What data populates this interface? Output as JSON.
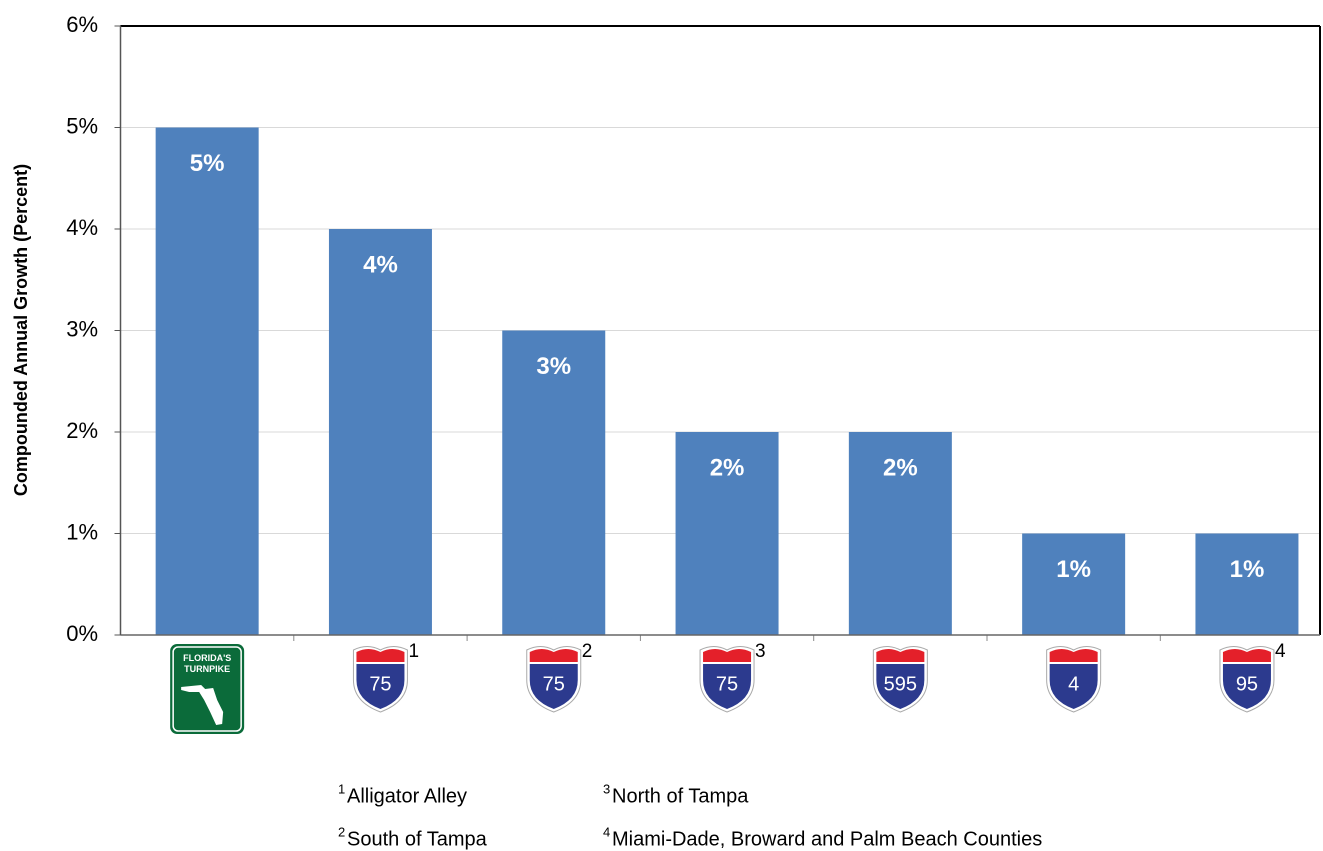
{
  "chart_data": {
    "type": "bar",
    "y_axis_label": "Compounded Annual Growth (Percent)",
    "categories": [
      "FLORIDA'S TURNPIKE",
      "75",
      "75",
      "75",
      "595",
      "4",
      "95"
    ],
    "footnote_refs": [
      null,
      "1",
      "2",
      "3",
      null,
      null,
      "4"
    ],
    "values": [
      5,
      4,
      3,
      2,
      2,
      1,
      1
    ],
    "value_labels": [
      "5%",
      "4%",
      "3%",
      "2%",
      "2%",
      "1%",
      "1%"
    ],
    "color": "#4f81bd",
    "ylim": [
      0,
      6
    ],
    "yticks": [
      {
        "value": 0,
        "label": "0%"
      },
      {
        "value": 1,
        "label": "1%"
      },
      {
        "value": 2,
        "label": "2%"
      },
      {
        "value": 3,
        "label": "3%"
      },
      {
        "value": 4,
        "label": "4%"
      },
      {
        "value": 5,
        "label": "5%"
      },
      {
        "value": 6,
        "label": "6%"
      }
    ],
    "grid": true,
    "footnotes": [
      {
        "ref": "1",
        "text": "Alligator Alley"
      },
      {
        "ref": "2",
        "text": "South of Tampa"
      },
      {
        "ref": "3",
        "text": "North of Tampa"
      },
      {
        "ref": "4",
        "text": "Miami-Dade, Broward and Palm Beach Counties"
      }
    ]
  }
}
